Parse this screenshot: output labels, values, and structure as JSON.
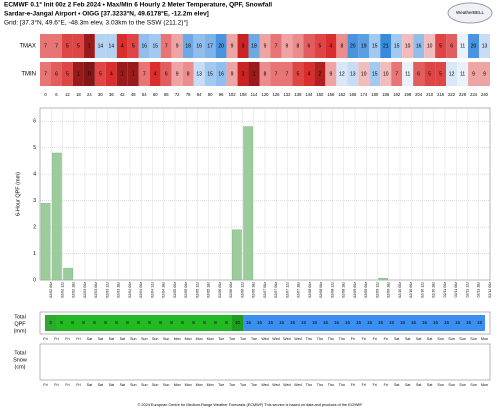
{
  "header": {
    "line1": "ECMWF 0.1° Init 00z 2 Feb 2024 • Max/Min 6 Hourly 2 Meter Temperature, QPF, Snowfall",
    "line2": "Sardar-e-Jangal Airport • OIGG [37.3233°N, 49.6178°E, -12.2m elev]",
    "line3": "Grid: [37.3°N, 49.6°E, -48.3m elev, 3.03km to the SSW (211.2)°]",
    "logo": "WeatherBELL"
  },
  "temp": {
    "rows": [
      {
        "label": "TMAX",
        "values": [
          7,
          7,
          5,
          5,
          1,
          14,
          14,
          4,
          5,
          16,
          15,
          7,
          9,
          18,
          16,
          17,
          20,
          9,
          3,
          18,
          9,
          7,
          9,
          8,
          6,
          5,
          4,
          8,
          20,
          19,
          15,
          21,
          15,
          10,
          16,
          10,
          5,
          6,
          11,
          20,
          13
        ]
      },
      {
        "label": "TMIN",
        "values": [
          7,
          6,
          5,
          1,
          0,
          5,
          4,
          1,
          1,
          7,
          4,
          6,
          9,
          8,
          13,
          15,
          16,
          9,
          3,
          1,
          8,
          7,
          7,
          5,
          4,
          2,
          9,
          12,
          13,
          10,
          15,
          10,
          7,
          11,
          6,
          5,
          5,
          12,
          11,
          9,
          9
        ]
      }
    ],
    "hours": [
      0,
      6,
      12,
      18,
      24,
      30,
      36,
      42,
      48,
      54,
      60,
      66,
      72,
      78,
      84,
      90,
      96,
      102,
      108,
      114,
      120,
      126,
      132,
      138,
      144,
      150,
      156,
      162,
      168,
      174,
      180,
      186,
      192,
      198,
      204,
      210,
      216,
      222,
      228,
      234,
      240
    ]
  },
  "chart_data": {
    "type": "bar",
    "ylabel": "6-Hour QPF (mm)",
    "color": "#9ccc9c",
    "grid": true,
    "ylim": [
      0,
      6.5
    ],
    "yticks": [
      0,
      1,
      2,
      3,
      4,
      5,
      6
    ],
    "categories": [
      "02/02 06z",
      "02/02 12z",
      "02/02 18z",
      "02/03 00z",
      "02/03 06z",
      "02/03 12z",
      "02/03 18z",
      "02/04 00z",
      "02/04 06z",
      "02/04 12z",
      "02/04 18z",
      "02/05 00z",
      "02/05 06z",
      "02/05 12z",
      "02/05 18z",
      "02/06 00z",
      "02/06 06z",
      "02/06 12z",
      "02/06 18z",
      "02/07 00z",
      "02/07 06z",
      "02/07 12z",
      "02/07 18z",
      "02/08 00z",
      "02/08 06z",
      "02/08 12z",
      "02/08 18z",
      "02/09 00z",
      "02/09 06z",
      "02/09 12z",
      "02/09 18z",
      "02/10 00z",
      "02/10 06z",
      "02/10 12z",
      "02/10 18z",
      "02/11 00z",
      "02/11 06z",
      "02/11 12z",
      "02/11 18z",
      "02/12 00z"
    ],
    "values": [
      2.9,
      4.8,
      0.45,
      0,
      0,
      0,
      0,
      0,
      0,
      0,
      0,
      0,
      0,
      0,
      0,
      0,
      0,
      1.9,
      5.8,
      0,
      0,
      0,
      0,
      0,
      0,
      0,
      0,
      0,
      0,
      0,
      0.07,
      0,
      0,
      0,
      0,
      0,
      0,
      0,
      0,
      0
    ]
  },
  "total_qpf": {
    "label": [
      "Total",
      "QPF",
      "(mm)"
    ],
    "values": [
      3,
      8,
      8,
      8,
      8,
      8,
      8,
      8,
      8,
      8,
      8,
      8,
      8,
      8,
      8,
      8,
      8,
      10,
      16,
      16,
      16,
      16,
      16,
      16,
      16,
      16,
      16,
      16,
      16,
      16,
      16,
      16,
      16,
      16,
      16,
      16,
      16,
      16,
      16,
      16
    ],
    "colors": [
      "#2fa82f",
      "#22b922",
      "#22b922",
      "#22b922",
      "#22b922",
      "#22b922",
      "#22b922",
      "#22b922",
      "#22b922",
      "#22b922",
      "#22b922",
      "#22b922",
      "#22b922",
      "#22b922",
      "#22b922",
      "#22b922",
      "#22b922",
      "#1e9e1e",
      "#3a8ff0",
      "#3a8ff0",
      "#3a8ff0",
      "#3a8ff0",
      "#3a8ff0",
      "#3a8ff0",
      "#3a8ff0",
      "#3a8ff0",
      "#3a8ff0",
      "#3a8ff0",
      "#3a8ff0",
      "#3a8ff0",
      "#3a8ff0",
      "#3a8ff0",
      "#3a8ff0",
      "#3a8ff0",
      "#3a8ff0",
      "#3a8ff0",
      "#3a8ff0",
      "#3a8ff0",
      "#3a8ff0",
      "#3a8ff0"
    ]
  },
  "days": [
    "Fri",
    "Fri",
    "Fri",
    "Fri",
    "Sat",
    "Sat",
    "Sat",
    "Sat",
    "Sun",
    "Sun",
    "Sun",
    "Sun",
    "Mon",
    "Mon",
    "Mon",
    "Mon",
    "Tue",
    "Tue",
    "Tue",
    "Tue",
    "Wed",
    "Wed",
    "Wed",
    "Wed",
    "Thu",
    "Thu",
    "Thu",
    "Thu",
    "Fri",
    "Fri",
    "Fri",
    "Fri",
    "Sat",
    "Sat",
    "Sat",
    "Sat",
    "Sun",
    "Sun",
    "Sun",
    "Sun",
    "Mon"
  ],
  "total_snow": {
    "label": [
      "Total",
      "Snow",
      "(cm)"
    ]
  },
  "footer": "© 2024 European Centre for Medium-Range Weather Forecasts (ECMWF) This service is based on data and products of the ECMWF"
}
